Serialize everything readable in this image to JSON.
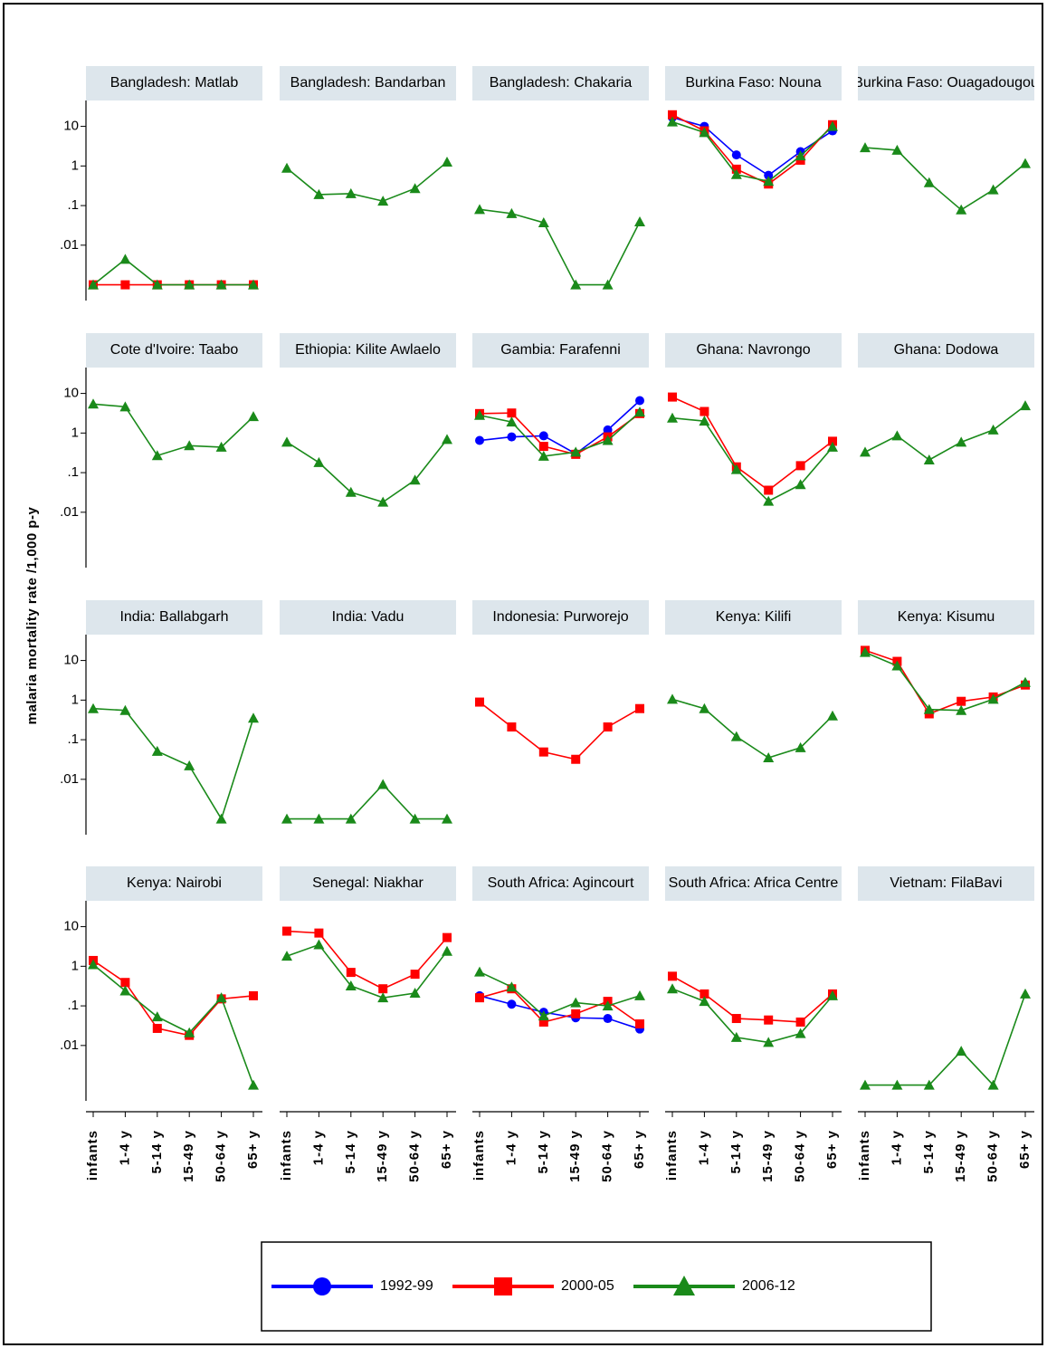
{
  "chart_data": {
    "type": "line",
    "ylabel": "malaria mortality rate /1,000 p-y",
    "ylog": true,
    "ylim": [
      0.0004,
      45
    ],
    "yticks": [
      10,
      1,
      {
        "value": 0.1,
        "label": ".1"
      },
      {
        "value": 0.01,
        "label": ".01"
      }
    ],
    "categories": [
      "infants",
      "1-4 y",
      "5-14 y",
      "15-49 y",
      "50-64 y",
      "65+ y"
    ],
    "series": [
      {
        "name": "1992-99",
        "color": "#0000ff",
        "marker": "circle"
      },
      {
        "name": "2000-05",
        "color": "#ff0000",
        "marker": "square"
      },
      {
        "name": "2006-12",
        "color": "#1a8a1a",
        "marker": "triangle"
      }
    ],
    "panels": [
      {
        "title": "Bangladesh: Matlab",
        "values": [
          null,
          [
            0.001,
            0.001,
            0.001,
            0.001,
            0.001,
            0.001
          ],
          [
            0.001,
            0.0044,
            0.001,
            0.001,
            0.001,
            0.001
          ]
        ]
      },
      {
        "title": "Bangladesh: Bandarban",
        "values": [
          null,
          null,
          [
            0.88,
            0.19,
            0.2,
            0.13,
            0.27,
            1.26
          ]
        ]
      },
      {
        "title": "Bangladesh: Chakaria",
        "values": [
          null,
          null,
          [
            0.08,
            0.063,
            0.037,
            0.001,
            0.001,
            0.039
          ]
        ]
      },
      {
        "title": "Burkina Faso: Nouna",
        "values": [
          [
            16.8,
            10,
            1.9,
            0.58,
            2.3,
            7.7
          ],
          [
            19.6,
            7.7,
            0.83,
            0.35,
            1.4,
            11
          ],
          [
            13,
            7,
            0.61,
            0.41,
            1.8,
            10
          ]
        ]
      },
      {
        "title": "Burkina Faso: Ouagadougou",
        "values": [
          null,
          null,
          [
            2.9,
            2.5,
            0.38,
            0.078,
            0.25,
            1.15
          ]
        ]
      },
      {
        "title": "Cote d'Ivoire: Taabo",
        "values": [
          null,
          null,
          [
            5.4,
            4.6,
            0.27,
            0.48,
            0.44,
            2.6
          ]
        ]
      },
      {
        "title": "Ethiopia: Kilite Awlaelo",
        "values": [
          null,
          null,
          [
            0.59,
            0.18,
            0.032,
            0.018,
            0.065,
            0.69
          ]
        ]
      },
      {
        "title": "Gambia: Farafenni",
        "values": [
          [
            0.65,
            0.8,
            0.85,
            0.3,
            1.2,
            6.6
          ],
          [
            3.1,
            3.2,
            0.46,
            0.29,
            0.8,
            3.1
          ],
          [
            2.8,
            1.9,
            0.26,
            0.33,
            0.65,
            3.4
          ]
        ]
      },
      {
        "title": "Ghana: Navrongo",
        "values": [
          null,
          [
            8.1,
            3.5,
            0.14,
            0.036,
            0.15,
            0.62
          ],
          [
            2.4,
            2,
            0.12,
            0.019,
            0.05,
            0.44
          ]
        ]
      },
      {
        "title": "Ghana: Dodowa",
        "values": [
          null,
          null,
          [
            0.33,
            0.85,
            0.21,
            0.59,
            1.2,
            4.9
          ]
        ]
      },
      {
        "title": "India: Ballabgarh",
        "values": [
          null,
          null,
          [
            0.61,
            0.55,
            0.051,
            0.022,
            0.001,
            0.35
          ]
        ]
      },
      {
        "title": "India: Vadu",
        "values": [
          null,
          null,
          [
            0.001,
            0.001,
            0.001,
            0.0074,
            0.001,
            0.001
          ]
        ]
      },
      {
        "title": "Indonesia: Purworejo",
        "values": [
          null,
          [
            0.89,
            0.21,
            0.049,
            0.032,
            0.21,
            0.61
          ],
          null
        ]
      },
      {
        "title": "Kenya: Kilifi",
        "values": [
          null,
          null,
          [
            1.05,
            0.61,
            0.12,
            0.035,
            0.063,
            0.4
          ]
        ]
      },
      {
        "title": "Kenya: Kisumu",
        "values": [
          null,
          [
            18,
            9.5,
            0.45,
            0.93,
            1.2,
            2.4
          ],
          [
            16,
            7.3,
            0.58,
            0.55,
            1.05,
            2.8
          ]
        ]
      },
      {
        "title": "Kenya: Nairobi",
        "values": [
          null,
          [
            1.4,
            0.39,
            0.027,
            0.018,
            0.15,
            0.18
          ],
          [
            1.1,
            0.24,
            0.053,
            0.021,
            0.16,
            0.001
          ]
        ]
      },
      {
        "title": "Senegal: Niakhar",
        "values": [
          null,
          [
            7.7,
            6.9,
            0.7,
            0.27,
            0.63,
            5.3
          ],
          [
            1.8,
            3.5,
            0.32,
            0.16,
            0.21,
            2.4
          ]
        ]
      },
      {
        "title": "South Africa: Agincourt",
        "values": [
          [
            0.18,
            0.11,
            0.069,
            0.05,
            0.048,
            0.026
          ],
          [
            0.16,
            0.27,
            0.039,
            0.063,
            0.13,
            0.035
          ],
          [
            0.72,
            0.3,
            0.056,
            0.12,
            0.1,
            0.18
          ]
        ]
      },
      {
        "title": "South Africa: Africa Centre",
        "values": [
          null,
          [
            0.56,
            0.2,
            0.048,
            0.044,
            0.039,
            0.2
          ],
          [
            0.27,
            0.13,
            0.016,
            0.012,
            0.02,
            0.18
          ]
        ]
      },
      {
        "title": "Vietnam: FilaBavi",
        "values": [
          null,
          null,
          [
            0.001,
            0.001,
            0.001,
            0.0072,
            0.001,
            0.2
          ]
        ]
      }
    ]
  }
}
